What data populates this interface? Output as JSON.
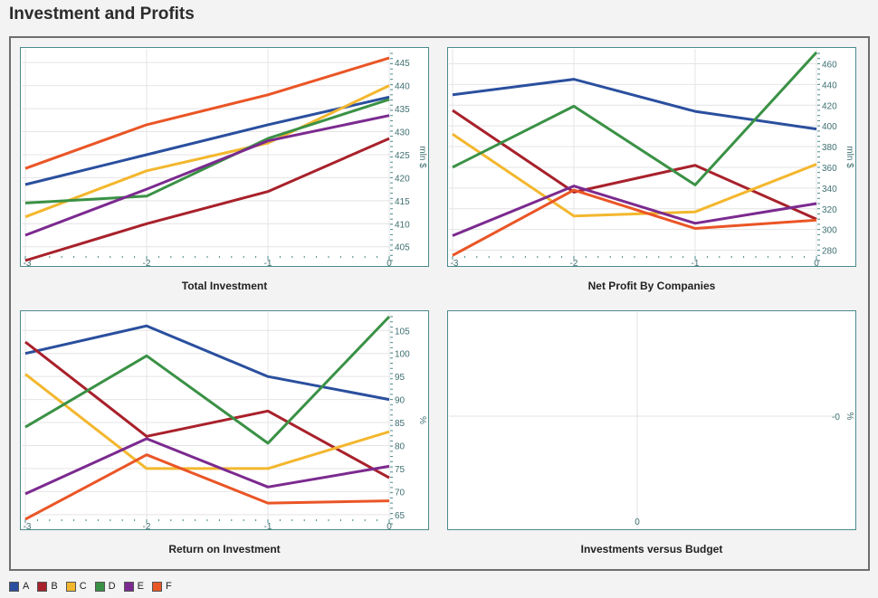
{
  "page_title": "Investment and Profits",
  "colors": {
    "A": "#2a4f9e",
    "B": "#a8212b",
    "C": "#f3b72e",
    "D": "#3a9145",
    "E": "#7b2a8f",
    "F": "#ea5526"
  },
  "legend": [
    "A",
    "B",
    "C",
    "D",
    "E",
    "F"
  ],
  "chart_data": [
    {
      "type": "line",
      "title": "Total Investment",
      "ylabel": "mln $",
      "x": [
        -3,
        -2,
        -1,
        0
      ],
      "xlim": [
        -3,
        0
      ],
      "ylim": [
        402,
        447
      ],
      "yticks": [
        405,
        410,
        415,
        420,
        425,
        430,
        435,
        440,
        445
      ],
      "grid": true,
      "series": [
        {
          "name": "A",
          "values": [
            418.5,
            425,
            431.5,
            437.5
          ]
        },
        {
          "name": "B",
          "values": [
            402,
            410,
            417,
            428.5
          ]
        },
        {
          "name": "C",
          "values": [
            411.5,
            421.5,
            427.5,
            440
          ]
        },
        {
          "name": "D",
          "values": [
            414.5,
            416,
            428.5,
            437
          ]
        },
        {
          "name": "E",
          "values": [
            407.5,
            417.5,
            428,
            433.5
          ]
        },
        {
          "name": "F",
          "values": [
            422,
            431.5,
            438,
            446
          ]
        }
      ]
    },
    {
      "type": "line",
      "title": "Net Profit By Companies",
      "ylabel": "mln $",
      "x": [
        -3,
        -2,
        -1,
        0
      ],
      "xlim": [
        -3,
        0
      ],
      "ylim": [
        270,
        470
      ],
      "yticks": [
        280,
        300,
        320,
        340,
        360,
        380,
        400,
        420,
        440,
        460
      ],
      "grid": true,
      "series": [
        {
          "name": "A",
          "values": [
            430,
            445,
            414,
            397
          ]
        },
        {
          "name": "B",
          "values": [
            415,
            336,
            362,
            310
          ]
        },
        {
          "name": "C",
          "values": [
            392,
            313,
            317,
            363
          ]
        },
        {
          "name": "D",
          "values": [
            360,
            419,
            343,
            471
          ]
        },
        {
          "name": "E",
          "values": [
            294,
            342,
            306,
            325
          ]
        },
        {
          "name": "F",
          "values": [
            275,
            338,
            301,
            309
          ]
        }
      ]
    },
    {
      "type": "line",
      "title": "Return on Investment",
      "ylabel": "%",
      "x": [
        -3,
        -2,
        -1,
        0
      ],
      "xlim": [
        -3,
        0
      ],
      "ylim": [
        63,
        108
      ],
      "yticks": [
        65,
        70,
        75,
        80,
        85,
        90,
        95,
        100,
        105
      ],
      "grid": true,
      "series": [
        {
          "name": "A",
          "values": [
            100,
            106,
            95,
            90
          ]
        },
        {
          "name": "B",
          "values": [
            102.5,
            82,
            87.5,
            73
          ]
        },
        {
          "name": "C",
          "values": [
            95.5,
            75,
            75,
            83
          ]
        },
        {
          "name": "D",
          "values": [
            84,
            99.5,
            80.5,
            108
          ]
        },
        {
          "name": "E",
          "values": [
            69.5,
            81.5,
            71,
            75.5
          ]
        },
        {
          "name": "F",
          "values": [
            64,
            78,
            67.5,
            68
          ]
        }
      ]
    },
    {
      "type": "line",
      "title": "Investments versus Budget",
      "ylabel": "%",
      "x_tick_labels": [
        "0"
      ],
      "y_tick_labels": [
        "-0"
      ],
      "grid": true,
      "series": []
    }
  ]
}
